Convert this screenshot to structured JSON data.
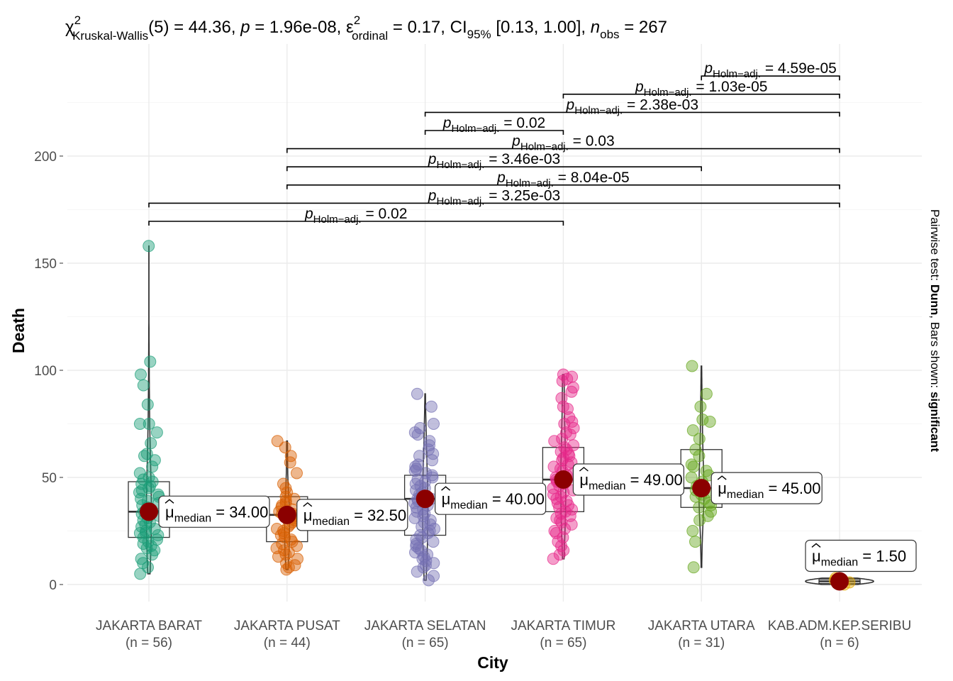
{
  "chart_data": {
    "type": "violin-box-scatter",
    "subtitle": {
      "chi": "χ",
      "chi_sup": "2",
      "chi_sub": "Kruskal-Wallis",
      "df_text": "(5) = 44.36, ",
      "p_label": "p",
      "p_text": " = 1.96e-08, ",
      "eps": "ε",
      "eps_sup": "2",
      "eps_sub": "ordinal",
      "eps_text": " = 0.17, CI",
      "ci_sub": "95%",
      "ci_text": " [0.13, 1.00], ",
      "n_label": "n",
      "n_sub": "obs",
      "n_text": " = 267"
    },
    "xlabel": "City",
    "ylabel": "Death",
    "caption_right": {
      "pre": "Pairwise test: ",
      "bold1": "Dunn",
      "mid": ", Bars shown: ",
      "bold2": "significant"
    },
    "ylim": [
      -8,
      238
    ],
    "yticks": [
      0,
      50,
      100,
      150,
      200
    ],
    "grid": true,
    "groups": [
      {
        "name": "JAKARTA BARAT",
        "n_label": "(n = 56)",
        "color": "#1B9E77",
        "median": 34.0,
        "q1": 22,
        "q3": 48,
        "whisker_low": 5,
        "whisker_high": 158,
        "mean_label": "34.00",
        "points": [
          158,
          104,
          98,
          93,
          84,
          75,
          75,
          71,
          66,
          61,
          60,
          58,
          55,
          52,
          50,
          49,
          48,
          47,
          46,
          45,
          44,
          43,
          42,
          41,
          40,
          39,
          38,
          37,
          36,
          35,
          34,
          34,
          33,
          32,
          31,
          30,
          29,
          28,
          27,
          26,
          25,
          24,
          24,
          23,
          22,
          21,
          20,
          19,
          18,
          17,
          16,
          14,
          12,
          10,
          8,
          5
        ]
      },
      {
        "name": "JAKARTA PUSAT",
        "n_label": "(n = 44)",
        "color": "#D95F02",
        "median": 32.5,
        "q1": 20,
        "q3": 41,
        "whisker_low": 7,
        "whisker_high": 66,
        "mean_label": "32.50",
        "points": [
          67,
          64,
          60,
          57,
          52,
          47,
          45,
          43,
          41,
          40,
          39,
          38,
          37,
          36,
          35,
          34,
          33,
          33,
          32,
          32,
          31,
          30,
          29,
          28,
          27,
          26,
          25,
          24,
          23,
          22,
          21,
          20,
          19,
          18,
          17,
          16,
          15,
          14,
          13,
          12,
          10,
          9,
          8,
          7
        ]
      },
      {
        "name": "JAKARTA SELATAN",
        "n_label": "(n = 65)",
        "color": "#7570B3",
        "median": 40.0,
        "q1": 23,
        "q3": 51,
        "whisker_low": 3,
        "whisker_high": 88,
        "mean_label": "40.00",
        "points": [
          89,
          83,
          75,
          73,
          71,
          70,
          67,
          65,
          63,
          61,
          60,
          58,
          56,
          55,
          54,
          53,
          52,
          51,
          50,
          49,
          48,
          47,
          46,
          45,
          44,
          43,
          42,
          41,
          40,
          40,
          39,
          38,
          37,
          36,
          35,
          34,
          33,
          32,
          31,
          30,
          29,
          28,
          27,
          26,
          25,
          24,
          23,
          22,
          21,
          20,
          19,
          18,
          17,
          16,
          15,
          14,
          13,
          12,
          11,
          10,
          9,
          8,
          6,
          4,
          2
        ]
      },
      {
        "name": "JAKARTA TIMUR",
        "n_label": "(n = 65)",
        "color": "#E7298A",
        "median": 49.0,
        "q1": 34,
        "q3": 64,
        "whisker_low": 12,
        "whisker_high": 98,
        "mean_label": "49.00",
        "points": [
          98,
          97,
          96,
          95,
          92,
          90,
          87,
          83,
          82,
          78,
          76,
          75,
          73,
          71,
          70,
          68,
          67,
          65,
          64,
          63,
          62,
          61,
          60,
          59,
          58,
          57,
          56,
          55,
          54,
          53,
          52,
          51,
          50,
          49,
          49,
          48,
          47,
          46,
          45,
          44,
          43,
          42,
          41,
          40,
          39,
          38,
          37,
          36,
          35,
          34,
          33,
          32,
          31,
          30,
          29,
          28,
          26,
          25,
          24,
          22,
          20,
          18,
          16,
          14,
          12
        ]
      },
      {
        "name": "JAKARTA UTARA",
        "n_label": "(n = 31)",
        "color": "#66A61E",
        "median": 45.0,
        "q1": 36,
        "q3": 63,
        "whisker_low": 8,
        "whisker_high": 101,
        "mean_label": "45.00",
        "points": [
          102,
          89,
          83,
          77,
          76,
          72,
          68,
          63,
          60,
          56,
          55,
          53,
          51,
          50,
          48,
          46,
          45,
          44,
          43,
          42,
          41,
          40,
          38,
          37,
          36,
          34,
          32,
          30,
          25,
          20,
          8
        ]
      },
      {
        "name": "KAB.ADM.KEP.SERIBU",
        "n_label": "(n = 6)",
        "color": "#E6AB02",
        "median": 1.5,
        "q1": 0.5,
        "q3": 2.5,
        "whisker_low": 0,
        "whisker_high": 3,
        "mean_label": "1.50",
        "points": [
          0,
          1,
          1,
          2,
          2,
          3
        ]
      }
    ],
    "mean_label_prefix": "μ",
    "mean_label_sub": "median",
    "pairwise": [
      {
        "from": 0,
        "to": 3,
        "p": "0.02"
      },
      {
        "from": 0,
        "to": 5,
        "p": "3.25e-03"
      },
      {
        "from": 1,
        "to": 5,
        "p": "8.04e-05"
      },
      {
        "from": 1,
        "to": 4,
        "p": "3.46e-03"
      },
      {
        "from": 1,
        "to": 5,
        "p": "0.03"
      },
      {
        "from": 2,
        "to": 3,
        "p": "0.02"
      },
      {
        "from": 2,
        "to": 5,
        "p": "2.38e-03"
      },
      {
        "from": 3,
        "to": 5,
        "p": "1.03e-05"
      },
      {
        "from": 4,
        "to": 5,
        "p": "4.59e-05"
      }
    ],
    "p_label_main": "p",
    "p_label_sub": "Holm−adj.",
    "median_point_color": "#8B0000"
  }
}
